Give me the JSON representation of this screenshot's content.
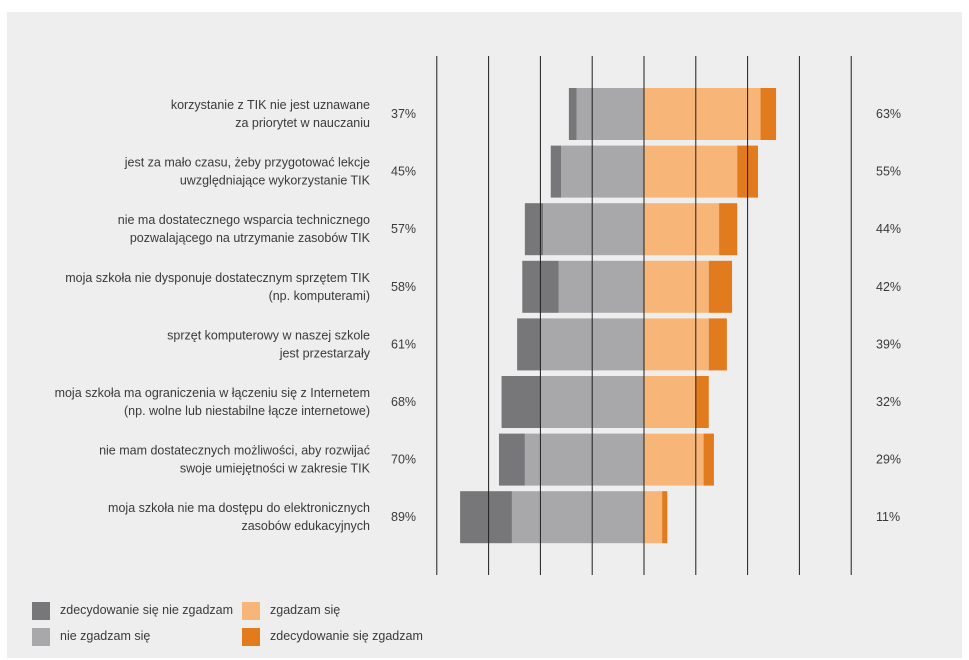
{
  "chart_data": {
    "type": "bar",
    "orientation": "horizontal",
    "stacked": "diverging",
    "categories": [
      [
        "korzystanie z TIK nie jest uznawane",
        "za priorytet w nauczaniu"
      ],
      [
        "jest za mało czasu, żeby przygotować lekcje",
        "uwzględniające wykorzystanie TIK"
      ],
      [
        "nie ma dostatecznego wsparcia technicznego",
        "pozwalającego na utrzymanie zasobów TIK"
      ],
      [
        "moja szkoła nie dysponuje dostatecznym sprzętem TIK",
        "(np. komputerami)"
      ],
      [
        "sprzęt komputerowy w naszej szkole",
        "jest przestarzały"
      ],
      [
        "moja szkoła ma ograniczenia w łączeniu się z Internetem",
        "(np. wolne lub niestabilne łącze internetowe)"
      ],
      [
        "nie mam dostatecznych możliwości, aby rozwijać",
        "swoje umiejętności w zakresie TIK"
      ],
      [
        "moja szkoła nie ma dostępu do elektronicznych",
        "zasobów edukacyjnych"
      ]
    ],
    "series": [
      {
        "name": "zdecydowanie się nie zgadzam",
        "side": "negative",
        "color": "#77777a",
        "values": [
          3,
          4,
          7,
          14,
          9,
          15,
          10,
          20
        ]
      },
      {
        "name": "nie zgadzam się",
        "side": "negative",
        "color": "#a8a8aa",
        "values": [
          26,
          32,
          39,
          33,
          40,
          40,
          46,
          51
        ]
      },
      {
        "name": "zgadzam się",
        "side": "positive",
        "color": "#f7b677",
        "values": [
          45,
          36,
          29,
          25,
          25,
          20,
          23,
          7
        ]
      },
      {
        "name": "zdecydowanie się zgadzam",
        "side": "positive",
        "color": "#e27a1e",
        "values": [
          6,
          8,
          7,
          9,
          7,
          5,
          4,
          2
        ]
      }
    ],
    "disagree_totals": [
      "37%",
      "45%",
      "57%",
      "58%",
      "61%",
      "68%",
      "70%",
      "89%"
    ],
    "agree_totals": [
      "63%",
      "55%",
      "44%",
      "42%",
      "39%",
      "32%",
      "29%",
      "11%"
    ],
    "x_range": [
      -80,
      80
    ],
    "x_gridlines": [
      -80,
      -60,
      -40,
      -20,
      0,
      20,
      40,
      60,
      80
    ],
    "grid": true,
    "legend_position": "bottom-left"
  },
  "legend": {
    "items": [
      {
        "label": "zdecydowanie się nie zgadzam",
        "color": "#77777a"
      },
      {
        "label": "nie zgadzam się",
        "color": "#a8a8aa"
      },
      {
        "label": "zgadzam się",
        "color": "#f7b677"
      },
      {
        "label": "zdecydowanie się zgadzam",
        "color": "#e27a1e"
      }
    ]
  }
}
